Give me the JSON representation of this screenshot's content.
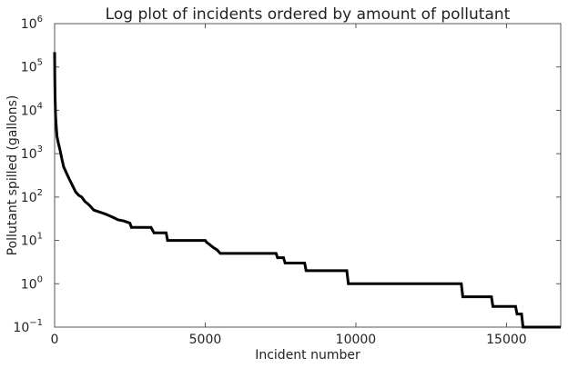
{
  "chart_data": {
    "type": "line",
    "title": "Log plot of incidents ordered by amount of pollutant",
    "xlabel": "Incident number",
    "ylabel": "Pollutant spilled (gallons)",
    "xlim": [
      0,
      16800
    ],
    "ylim": [
      0.1,
      1000000
    ],
    "yscale": "log",
    "grid": false,
    "xticks": [
      {
        "value": 0,
        "label": "0"
      },
      {
        "value": 5000,
        "label": "5000"
      },
      {
        "value": 10000,
        "label": "10000"
      },
      {
        "value": 15000,
        "label": "15000"
      }
    ],
    "yticks": [
      {
        "value": 0.1,
        "base": "10",
        "exp": "−1"
      },
      {
        "value": 1,
        "base": "10",
        "exp": "0"
      },
      {
        "value": 10,
        "base": "10",
        "exp": "1"
      },
      {
        "value": 100,
        "base": "10",
        "exp": "2"
      },
      {
        "value": 1000,
        "base": "10",
        "exp": "3"
      },
      {
        "value": 10000,
        "base": "10",
        "exp": "4"
      },
      {
        "value": 100000,
        "base": "10",
        "exp": "5"
      },
      {
        "value": 1000000,
        "base": "10",
        "exp": "6"
      }
    ],
    "series": [
      {
        "color": "#000000",
        "x": [
          0,
          5,
          15,
          30,
          50,
          80,
          120,
          180,
          250,
          300,
          400,
          500,
          600,
          700,
          800,
          900,
          1000,
          1100,
          1200,
          1300,
          1500,
          1700,
          1900,
          2100,
          2300,
          2500,
          2550,
          3200,
          3300,
          3700,
          3750,
          5000,
          5050,
          5150,
          5250,
          5400,
          5500,
          7350,
          7400,
          7600,
          7650,
          8300,
          8350,
          9700,
          9750,
          13500,
          13550,
          14500,
          14550,
          15300,
          15350,
          15500,
          15550,
          16800
        ],
        "y": [
          220000,
          60000,
          20000,
          8000,
          4500,
          2500,
          1800,
          1200,
          700,
          500,
          350,
          250,
          180,
          130,
          110,
          100,
          80,
          70,
          60,
          50,
          45,
          40,
          35,
          30,
          28,
          25,
          20,
          20,
          15,
          15,
          10,
          10,
          9,
          8,
          7,
          6,
          5,
          5,
          4,
          4,
          3,
          3,
          2,
          2,
          1,
          1,
          0.5,
          0.5,
          0.3,
          0.3,
          0.2,
          0.2,
          0.1,
          0.1
        ]
      }
    ]
  }
}
